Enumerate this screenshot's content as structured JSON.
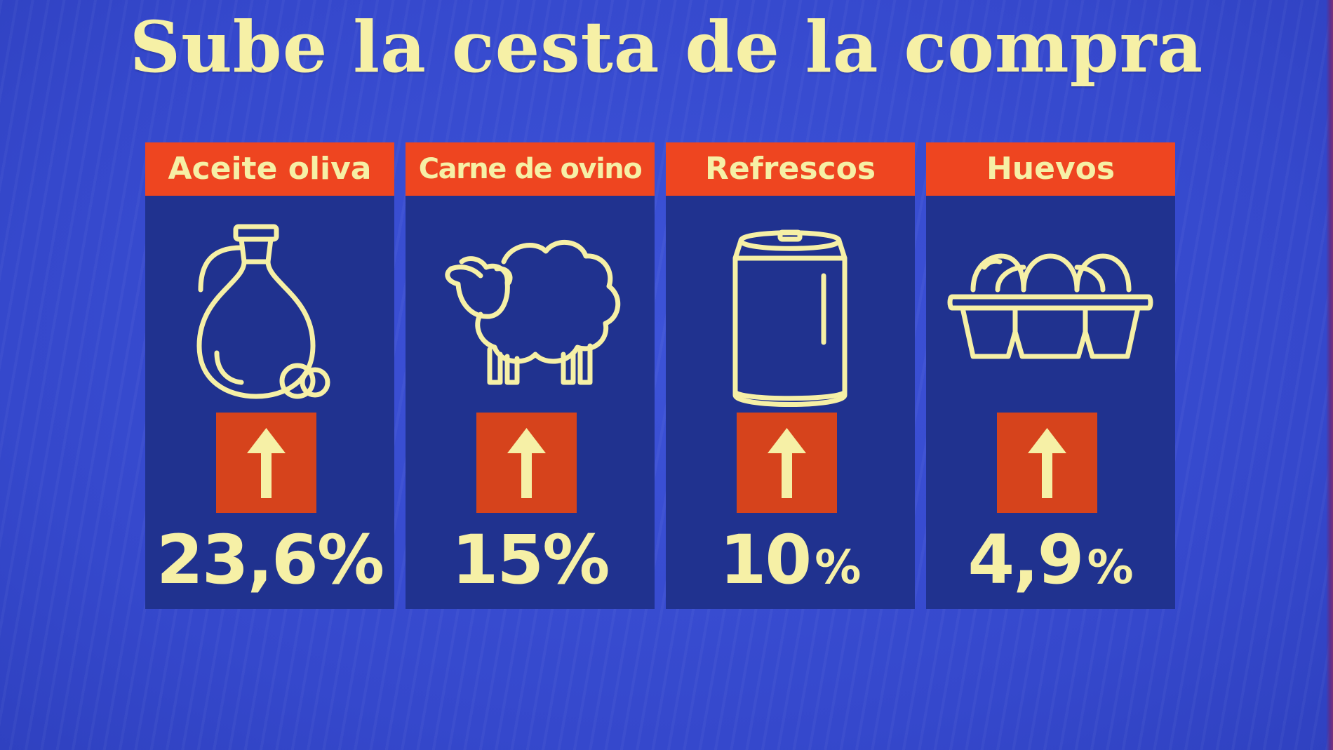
{
  "title": "Sube la cesta de la compra",
  "colors": {
    "background": "#3a4fd2",
    "card": "#20328f",
    "header": "#ee4520",
    "arrow_box": "#d6431c",
    "text": "#f6f0a6"
  },
  "items": [
    {
      "label": "Aceite oliva",
      "icon": "olive-oil-bottle-icon",
      "trend": "up-arrow-icon",
      "value": "23,6",
      "unit": "%"
    },
    {
      "label": "Carne de ovino",
      "icon": "sheep-icon",
      "trend": "up-arrow-icon",
      "value": "15",
      "unit": "%"
    },
    {
      "label": "Refrescos",
      "icon": "soda-can-icon",
      "trend": "up-arrow-icon",
      "value": "10",
      "unit": "%"
    },
    {
      "label": "Huevos",
      "icon": "egg-carton-icon",
      "trend": "up-arrow-icon",
      "value": "4,9",
      "unit": "%"
    }
  ]
}
